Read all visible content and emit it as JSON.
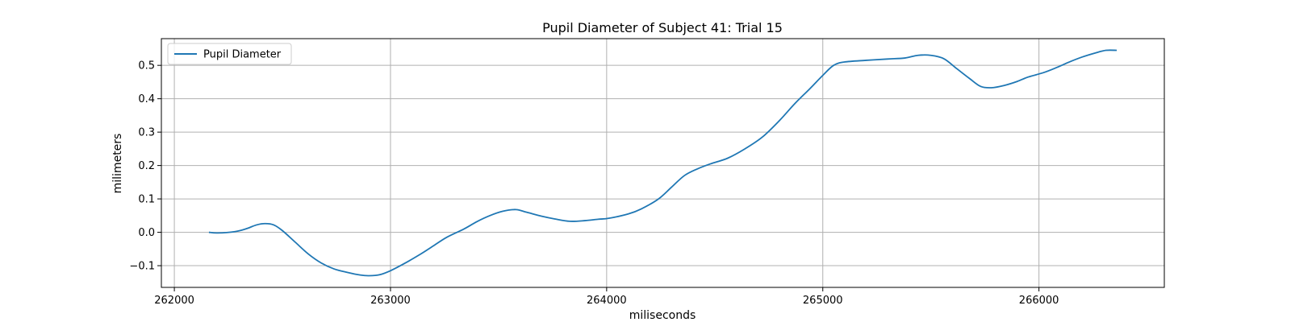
{
  "chart_data": {
    "type": "line",
    "title": "Pupil Diameter of Subject 41: Trial 15",
    "xlabel": "miliseconds",
    "ylabel": "milimeters",
    "xlim": [
      261940,
      266580
    ],
    "ylim": [
      -0.165,
      0.58
    ],
    "xticks": [
      262000,
      263000,
      264000,
      265000,
      266000
    ],
    "yticks": [
      -0.1,
      0.0,
      0.1,
      0.2,
      0.3,
      0.4,
      0.5
    ],
    "xtick_labels": [
      "262000",
      "263000",
      "264000",
      "265000",
      "266000"
    ],
    "ytick_labels": [
      "−0.1",
      "0.0",
      "0.1",
      "0.2",
      "0.3",
      "0.4",
      "0.5"
    ],
    "grid": true,
    "legend_position": "top-left",
    "series": [
      {
        "name": "Pupil Diameter",
        "color": "#1f77b4",
        "x": [
          262160,
          262200,
          262280,
          262330,
          262380,
          262420,
          262460,
          262500,
          262560,
          262620,
          262680,
          262740,
          262800,
          262860,
          262900,
          262950,
          263000,
          263060,
          263140,
          263200,
          263260,
          263340,
          263400,
          263460,
          263520,
          263580,
          263630,
          263700,
          263760,
          263830,
          263900,
          263960,
          264010,
          264100,
          264160,
          264240,
          264300,
          264360,
          264420,
          264480,
          264560,
          264640,
          264720,
          264800,
          264870,
          264940,
          265000,
          265050,
          265100,
          265200,
          265300,
          265380,
          265440,
          265500,
          265560,
          265620,
          265680,
          265730,
          265780,
          265840,
          265900,
          265950,
          266020,
          266080,
          266140,
          266200,
          266260,
          266310,
          266360
        ],
        "y": [
          0.0,
          -0.002,
          0.002,
          0.01,
          0.022,
          0.026,
          0.022,
          0.005,
          -0.03,
          -0.065,
          -0.092,
          -0.11,
          -0.12,
          -0.128,
          -0.13,
          -0.127,
          -0.115,
          -0.095,
          -0.065,
          -0.04,
          -0.015,
          0.01,
          0.032,
          0.05,
          0.063,
          0.068,
          0.06,
          0.048,
          0.04,
          0.033,
          0.035,
          0.039,
          0.042,
          0.055,
          0.07,
          0.1,
          0.135,
          0.17,
          0.19,
          0.205,
          0.222,
          0.25,
          0.285,
          0.335,
          0.385,
          0.43,
          0.47,
          0.5,
          0.51,
          0.515,
          0.519,
          0.522,
          0.53,
          0.53,
          0.52,
          0.49,
          0.46,
          0.437,
          0.433,
          0.44,
          0.452,
          0.465,
          0.478,
          0.493,
          0.51,
          0.525,
          0.537,
          0.545,
          0.545
        ]
      }
    ]
  }
}
